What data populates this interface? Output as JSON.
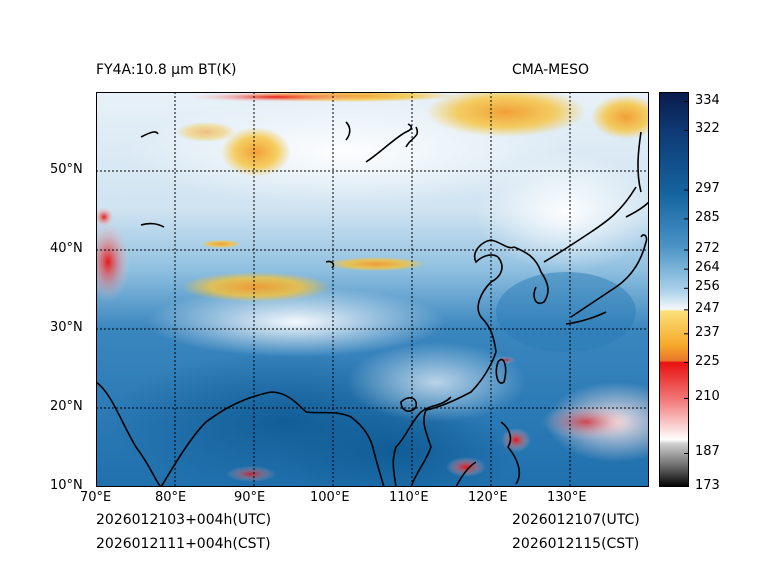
{
  "header": {
    "title_left": "FY4A:10.8 µm BT(K)",
    "title_right": "CMA-MESO"
  },
  "footer": {
    "init_utc": "2026012103+004h(UTC)",
    "init_cst": "2026012111+004h(CST)",
    "valid_utc": "2026012107(UTC)",
    "valid_cst": "2026012115(CST)"
  },
  "map": {
    "lon_ticks": [
      "70°E",
      "80°E",
      "90°E",
      "100°E",
      "110°E",
      "120°E",
      "130°E"
    ],
    "lat_ticks": [
      "10°N",
      "20°N",
      "30°N",
      "40°N",
      "50°N"
    ],
    "lon_values": [
      70,
      80,
      90,
      100,
      110,
      120,
      130
    ],
    "lat_values": [
      10,
      20,
      30,
      40,
      50
    ],
    "extent": {
      "lon_min": 70,
      "lon_max": 140,
      "lat_min": 10,
      "lat_max": 60
    }
  },
  "colorbar": {
    "labels": [
      "334",
      "322",
      "297",
      "285",
      "272",
      "264",
      "256",
      "247",
      "237",
      "225",
      "210",
      "187",
      "173"
    ],
    "values": [
      334,
      322,
      297,
      285,
      272,
      264,
      256,
      247,
      237,
      225,
      210,
      187,
      173
    ],
    "min": 173,
    "max": 338,
    "colors": {
      "navy": "#0b1a4a",
      "blue": "#1565a0",
      "light_blue": "#7fb9dc",
      "white": "#f4f8fb",
      "yellow": "#f7c33a",
      "orange": "#e8762a",
      "red": "#e81010",
      "pink": "#f8c8c8",
      "gray": "#888888",
      "black": "#000000"
    }
  }
}
